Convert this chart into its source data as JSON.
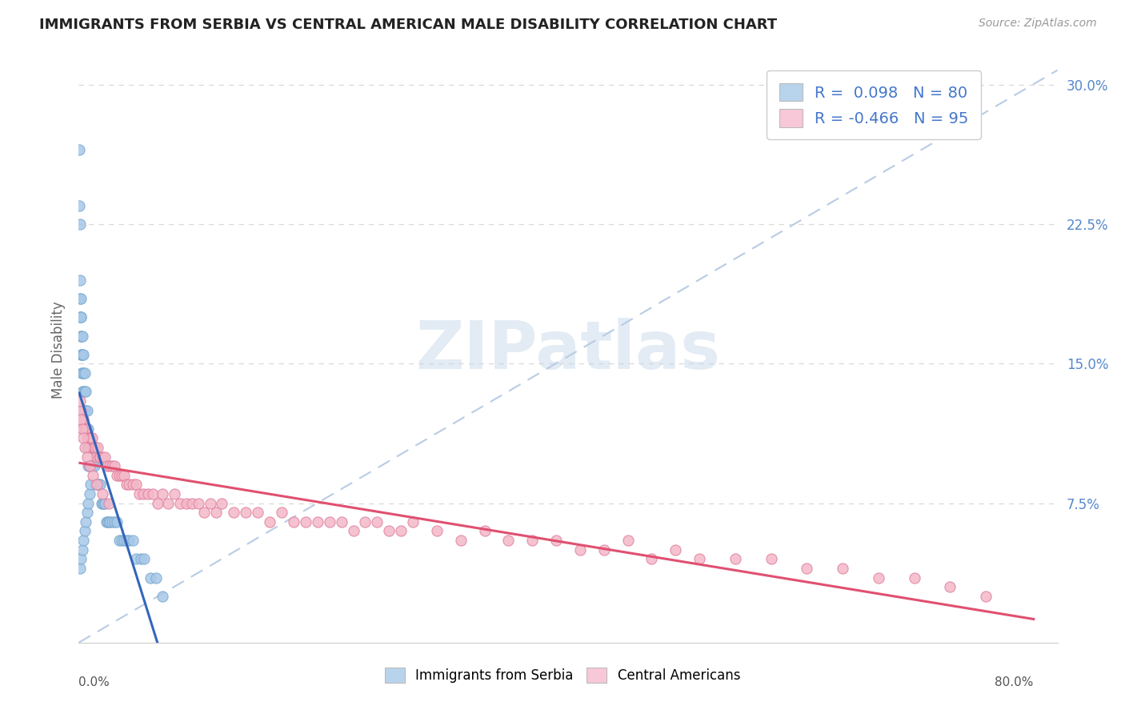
{
  "title": "IMMIGRANTS FROM SERBIA VS CENTRAL AMERICAN MALE DISABILITY CORRELATION CHART",
  "source": "Source: ZipAtlas.com",
  "ylabel": "Male Disability",
  "serbia_color": "#a8c8e8",
  "serbia_edge_color": "#7aaad0",
  "central_color": "#f4b8c8",
  "central_edge_color": "#e080a0",
  "serbia_trend_color": "#3366bb",
  "central_trend_color": "#e05070",
  "dashed_color": "#b8cce4",
  "legend_serbia_color": "#b8d4ec",
  "legend_central_color": "#f8c8d8",
  "R_serbia": 0.098,
  "N_serbia": 80,
  "R_central": -0.466,
  "N_central": 95,
  "yticks": [
    0.075,
    0.15,
    0.225,
    0.3
  ],
  "ytick_labels": [
    "7.5%",
    "15.0%",
    "22.5%",
    "30.0%"
  ],
  "xlim": [
    0.0,
    0.82
  ],
  "ylim": [
    0.0,
    0.315
  ],
  "watermark": "ZIPatlas",
  "background_color": "#ffffff",
  "grid_color": "#d8d8d8",
  "serbia_x_data": [
    0.0005,
    0.0005,
    0.0008,
    0.001,
    0.001,
    0.0012,
    0.0015,
    0.0015,
    0.0018,
    0.002,
    0.002,
    0.002,
    0.0022,
    0.0025,
    0.003,
    0.003,
    0.003,
    0.003,
    0.004,
    0.004,
    0.004,
    0.004,
    0.005,
    0.005,
    0.005,
    0.006,
    0.006,
    0.006,
    0.007,
    0.007,
    0.007,
    0.008,
    0.008,
    0.008,
    0.009,
    0.009,
    0.01,
    0.01,
    0.011,
    0.011,
    0.012,
    0.013,
    0.014,
    0.015,
    0.016,
    0.017,
    0.018,
    0.019,
    0.02,
    0.021,
    0.022,
    0.023,
    0.024,
    0.025,
    0.026,
    0.028,
    0.03,
    0.032,
    0.034,
    0.036,
    0.038,
    0.04,
    0.042,
    0.045,
    0.048,
    0.052,
    0.055,
    0.06,
    0.065,
    0.07,
    0.001,
    0.002,
    0.003,
    0.004,
    0.005,
    0.006,
    0.007,
    0.008,
    0.009,
    0.01
  ],
  "serbia_y_data": [
    0.265,
    0.235,
    0.225,
    0.195,
    0.185,
    0.175,
    0.185,
    0.175,
    0.165,
    0.155,
    0.175,
    0.165,
    0.155,
    0.145,
    0.165,
    0.155,
    0.145,
    0.135,
    0.155,
    0.145,
    0.135,
    0.125,
    0.145,
    0.135,
    0.125,
    0.135,
    0.125,
    0.115,
    0.125,
    0.115,
    0.105,
    0.115,
    0.105,
    0.095,
    0.105,
    0.095,
    0.105,
    0.095,
    0.105,
    0.095,
    0.095,
    0.095,
    0.085,
    0.085,
    0.085,
    0.085,
    0.085,
    0.075,
    0.075,
    0.075,
    0.075,
    0.065,
    0.065,
    0.065,
    0.065,
    0.065,
    0.065,
    0.065,
    0.055,
    0.055,
    0.055,
    0.055,
    0.055,
    0.055,
    0.045,
    0.045,
    0.045,
    0.035,
    0.035,
    0.025,
    0.04,
    0.045,
    0.05,
    0.055,
    0.06,
    0.065,
    0.07,
    0.075,
    0.08,
    0.085
  ],
  "central_x_data": [
    0.001,
    0.002,
    0.003,
    0.004,
    0.005,
    0.006,
    0.007,
    0.008,
    0.009,
    0.01,
    0.011,
    0.012,
    0.013,
    0.014,
    0.015,
    0.016,
    0.017,
    0.018,
    0.02,
    0.022,
    0.024,
    0.026,
    0.028,
    0.03,
    0.032,
    0.034,
    0.036,
    0.038,
    0.04,
    0.042,
    0.045,
    0.048,
    0.051,
    0.054,
    0.058,
    0.062,
    0.066,
    0.07,
    0.075,
    0.08,
    0.085,
    0.09,
    0.095,
    0.1,
    0.105,
    0.11,
    0.115,
    0.12,
    0.13,
    0.14,
    0.15,
    0.16,
    0.17,
    0.18,
    0.19,
    0.2,
    0.21,
    0.22,
    0.23,
    0.24,
    0.25,
    0.26,
    0.27,
    0.28,
    0.3,
    0.32,
    0.34,
    0.36,
    0.38,
    0.4,
    0.42,
    0.44,
    0.46,
    0.48,
    0.5,
    0.52,
    0.55,
    0.58,
    0.61,
    0.64,
    0.67,
    0.7,
    0.73,
    0.76,
    0.001,
    0.002,
    0.003,
    0.004,
    0.005,
    0.007,
    0.009,
    0.012,
    0.015,
    0.02,
    0.025
  ],
  "central_y_data": [
    0.125,
    0.125,
    0.115,
    0.12,
    0.115,
    0.115,
    0.11,
    0.11,
    0.105,
    0.11,
    0.11,
    0.105,
    0.105,
    0.105,
    0.1,
    0.105,
    0.1,
    0.1,
    0.1,
    0.1,
    0.095,
    0.095,
    0.095,
    0.095,
    0.09,
    0.09,
    0.09,
    0.09,
    0.085,
    0.085,
    0.085,
    0.085,
    0.08,
    0.08,
    0.08,
    0.08,
    0.075,
    0.08,
    0.075,
    0.08,
    0.075,
    0.075,
    0.075,
    0.075,
    0.07,
    0.075,
    0.07,
    0.075,
    0.07,
    0.07,
    0.07,
    0.065,
    0.07,
    0.065,
    0.065,
    0.065,
    0.065,
    0.065,
    0.06,
    0.065,
    0.065,
    0.06,
    0.06,
    0.065,
    0.06,
    0.055,
    0.06,
    0.055,
    0.055,
    0.055,
    0.05,
    0.05,
    0.055,
    0.045,
    0.05,
    0.045,
    0.045,
    0.045,
    0.04,
    0.04,
    0.035,
    0.035,
    0.03,
    0.025,
    0.13,
    0.12,
    0.115,
    0.11,
    0.105,
    0.1,
    0.095,
    0.09,
    0.085,
    0.08,
    0.075
  ]
}
